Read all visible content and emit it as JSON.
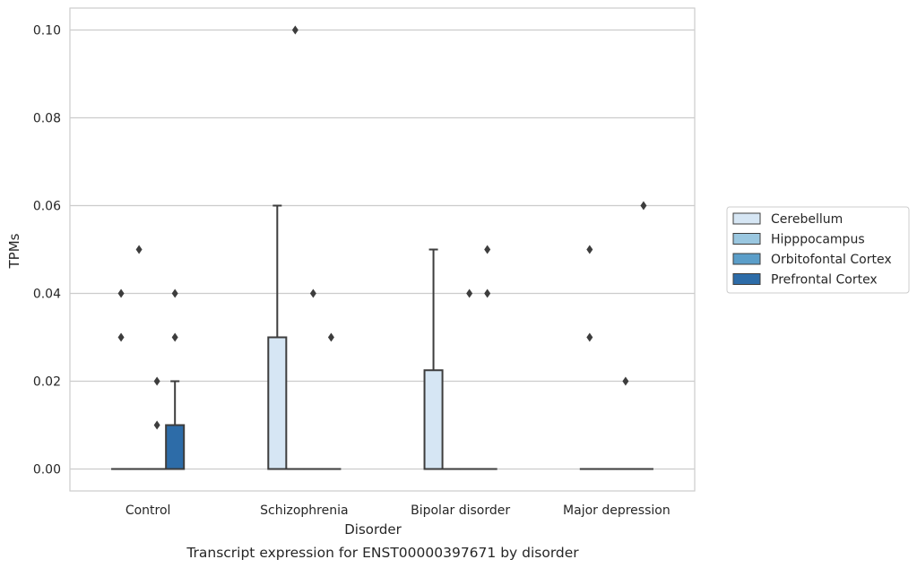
{
  "chart_data": {
    "type": "box",
    "title": "",
    "caption": "Transcript expression for ENST00000397671 by disorder",
    "xlabel": "Disorder",
    "ylabel": "TPMs",
    "ylim": [
      -0.005,
      0.105
    ],
    "yticks": [
      0.0,
      0.02,
      0.04,
      0.06,
      0.08,
      0.1
    ],
    "ytick_labels": [
      "0.00",
      "0.02",
      "0.04",
      "0.06",
      "0.08",
      "0.10"
    ],
    "grid": "horizontal",
    "legend_position": "right",
    "categories": [
      "Control",
      "Schizophrenia",
      "Bipolar disorder",
      "Major depression"
    ],
    "series": [
      {
        "name": "Cerebellum",
        "color": "#d6e6f4",
        "boxes": [
          {
            "q1": 0.0,
            "median": 0.0,
            "q3": 0.0,
            "whisker_low": 0.0,
            "whisker_high": 0.0,
            "outliers": [
              0.03,
              0.04
            ]
          },
          {
            "q1": 0.0,
            "median": 0.0,
            "q3": 0.03,
            "whisker_low": 0.0,
            "whisker_high": 0.06,
            "outliers": []
          },
          {
            "q1": 0.0,
            "median": 0.0,
            "q3": 0.0225,
            "whisker_low": 0.0,
            "whisker_high": 0.05,
            "outliers": []
          },
          {
            "q1": 0.0,
            "median": 0.0,
            "q3": 0.0,
            "whisker_low": 0.0,
            "whisker_high": 0.0,
            "outliers": [
              0.03,
              0.05
            ]
          }
        ]
      },
      {
        "name": "Hipppocampus",
        "color": "#9ac7e0",
        "boxes": [
          {
            "q1": 0.0,
            "median": 0.0,
            "q3": 0.0,
            "whisker_low": 0.0,
            "whisker_high": 0.0,
            "outliers": [
              0.05
            ]
          },
          {
            "q1": 0.0,
            "median": 0.0,
            "q3": 0.0,
            "whisker_low": 0.0,
            "whisker_high": 0.0,
            "outliers": [
              0.1
            ]
          },
          {
            "q1": 0.0,
            "median": 0.0,
            "q3": 0.0,
            "whisker_low": 0.0,
            "whisker_high": 0.0,
            "outliers": []
          },
          {
            "q1": 0.0,
            "median": 0.0,
            "q3": 0.0,
            "whisker_low": 0.0,
            "whisker_high": 0.0,
            "outliers": []
          }
        ]
      },
      {
        "name": "Orbitofontal Cortex",
        "color": "#5b9ec9",
        "boxes": [
          {
            "q1": 0.0,
            "median": 0.0,
            "q3": 0.0,
            "whisker_low": 0.0,
            "whisker_high": 0.0,
            "outliers": [
              0.01,
              0.02
            ]
          },
          {
            "q1": 0.0,
            "median": 0.0,
            "q3": 0.0,
            "whisker_low": 0.0,
            "whisker_high": 0.0,
            "outliers": [
              0.04
            ]
          },
          {
            "q1": 0.0,
            "median": 0.0,
            "q3": 0.0,
            "whisker_low": 0.0,
            "whisker_high": 0.0,
            "outliers": [
              0.04
            ]
          },
          {
            "q1": 0.0,
            "median": 0.0,
            "q3": 0.0,
            "whisker_low": 0.0,
            "whisker_high": 0.0,
            "outliers": [
              0.02
            ]
          }
        ]
      },
      {
        "name": "Prefrontal Cortex",
        "color": "#2d6ca8",
        "boxes": [
          {
            "q1": 0.0,
            "median": 0.0,
            "q3": 0.01,
            "whisker_low": 0.0,
            "whisker_high": 0.02,
            "outliers": [
              0.03,
              0.04
            ]
          },
          {
            "q1": 0.0,
            "median": 0.0,
            "q3": 0.0,
            "whisker_low": 0.0,
            "whisker_high": 0.0,
            "outliers": [
              0.03
            ]
          },
          {
            "q1": 0.0,
            "median": 0.0,
            "q3": 0.0,
            "whisker_low": 0.0,
            "whisker_high": 0.0,
            "outliers": [
              0.04,
              0.05
            ]
          },
          {
            "q1": 0.0,
            "median": 0.0,
            "q3": 0.0,
            "whisker_low": 0.0,
            "whisker_high": 0.0,
            "outliers": [
              0.06
            ]
          }
        ]
      }
    ]
  }
}
